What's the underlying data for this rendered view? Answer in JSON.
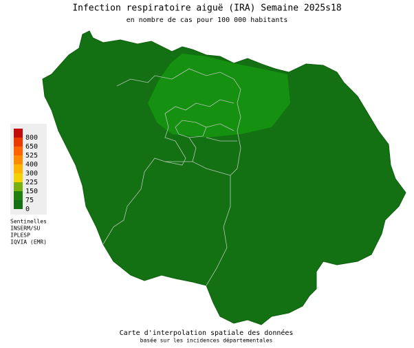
{
  "header": {
    "title": "Infection respiratoire aiguë (IRA) Semaine 2025s18",
    "subtitle": "en nombre de cas pour 100 000 habitants"
  },
  "legend": {
    "ticks": [
      0,
      75,
      150,
      225,
      300,
      400,
      525,
      650,
      800
    ],
    "colors": [
      "#137113",
      "#1f800f",
      "#78b010",
      "#f2d200",
      "#ffb400",
      "#ff8c00",
      "#ff6400",
      "#ea3a00",
      "#c20c0c"
    ]
  },
  "credits": [
    "Sentinelles",
    "INSERM/SU",
    "IPLESP",
    "IQVIA (EMR)"
  ],
  "footer": {
    "title": "Carte d'interpolation spatiale des données",
    "subtitle": "basée sur les incidences départementales"
  }
}
